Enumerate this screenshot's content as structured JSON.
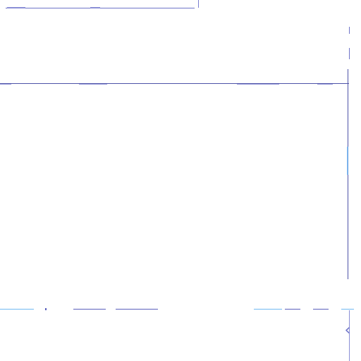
{
  "icons": {
    "chevron": "chevron-left-icon"
  },
  "colors": {
    "accent": "#4e53a8",
    "line_light": "#8a8fd6",
    "highlight": "#6fb9f2"
  }
}
